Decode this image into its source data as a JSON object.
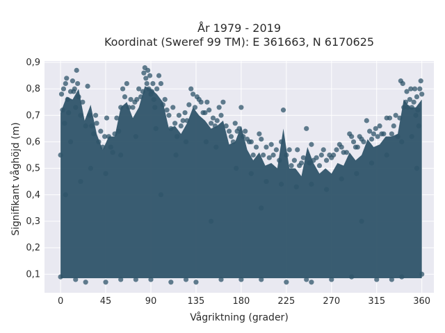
{
  "chart_data": {
    "type": "scatter",
    "title_line1": "År 1979 - 2019",
    "title_line2": "Koordinat (Sweref 99 TM): E 361663, N 6170625",
    "xlabel": "Vågriktning (grader)",
    "ylabel": "Signifikant våghöjd (m)",
    "xlim": [
      -16,
      372
    ],
    "ylim": [
      0.03,
      0.905
    ],
    "xticks": [
      0,
      45,
      90,
      135,
      180,
      225,
      270,
      315,
      360
    ],
    "xtick_labels": [
      "0",
      "45",
      "90",
      "135",
      "180",
      "225",
      "270",
      "315",
      "360"
    ],
    "yticks": [
      0.1,
      0.2,
      0.3,
      0.4,
      0.5,
      0.6,
      0.7,
      0.8,
      0.9
    ],
    "ytick_labels": [
      "0,1",
      "0,2",
      "0,3",
      "0,4",
      "0,5",
      "0,6",
      "0,7",
      "0,8",
      "0,9"
    ],
    "grid": true,
    "legend": "none",
    "marker_color": "#2f5469",
    "plot_background": "#e9e9f1",
    "grid_color": "#ffffff",
    "series": [
      {
        "points": [
          [
            0,
            0.09
          ],
          [
            0,
            0.55
          ],
          [
            1,
            0.78
          ],
          [
            2,
            0.72
          ],
          [
            3,
            0.8
          ],
          [
            4,
            0.67
          ],
          [
            5,
            0.82
          ],
          [
            6,
            0.84
          ],
          [
            7,
            0.76
          ],
          [
            8,
            0.71
          ],
          [
            10,
            0.79
          ],
          [
            12,
            0.83
          ],
          [
            13,
            0.79
          ],
          [
            14,
            0.8
          ],
          [
            15,
            0.73
          ],
          [
            16,
            0.87
          ],
          [
            17,
            0.82
          ],
          [
            18,
            0.77
          ],
          [
            20,
            0.7
          ],
          [
            22,
            0.75
          ],
          [
            25,
            0.66
          ],
          [
            27,
            0.81
          ],
          [
            29,
            0.7
          ],
          [
            31,
            0.66
          ],
          [
            33,
            0.63
          ],
          [
            35,
            0.7
          ],
          [
            36,
            0.67
          ],
          [
            38,
            0.6
          ],
          [
            40,
            0.64
          ],
          [
            42,
            0.58
          ],
          [
            44,
            0.62
          ],
          [
            46,
            0.69
          ],
          [
            48,
            0.62
          ],
          [
            50,
            0.58
          ],
          [
            52,
            0.56
          ],
          [
            54,
            0.63
          ],
          [
            56,
            0.69
          ],
          [
            58,
            0.64
          ],
          [
            60,
            0.73
          ],
          [
            62,
            0.8
          ],
          [
            64,
            0.77
          ],
          [
            66,
            0.82
          ],
          [
            68,
            0.73
          ],
          [
            70,
            0.76
          ],
          [
            72,
            0.73
          ],
          [
            74,
            0.75
          ],
          [
            76,
            0.76
          ],
          [
            78,
            0.8
          ],
          [
            80,
            0.77
          ],
          [
            82,
            0.79
          ],
          [
            83,
            0.86
          ],
          [
            84,
            0.88
          ],
          [
            85,
            0.84
          ],
          [
            86,
            0.82
          ],
          [
            87,
            0.87
          ],
          [
            88,
            0.8
          ],
          [
            89,
            0.85
          ],
          [
            90,
            0.78
          ],
          [
            91,
            0.79
          ],
          [
            92,
            0.82
          ],
          [
            93,
            0.76
          ],
          [
            94,
            0.73
          ],
          [
            96,
            0.8
          ],
          [
            98,
            0.85
          ],
          [
            100,
            0.82
          ],
          [
            102,
            0.74
          ],
          [
            104,
            0.76
          ],
          [
            106,
            0.72
          ],
          [
            108,
            0.7
          ],
          [
            110,
            0.65
          ],
          [
            112,
            0.73
          ],
          [
            114,
            0.67
          ],
          [
            116,
            0.62
          ],
          [
            118,
            0.7
          ],
          [
            120,
            0.66
          ],
          [
            122,
            0.68
          ],
          [
            124,
            0.71
          ],
          [
            126,
            0.68
          ],
          [
            128,
            0.74
          ],
          [
            130,
            0.8
          ],
          [
            132,
            0.78
          ],
          [
            134,
            0.73
          ],
          [
            136,
            0.77
          ],
          [
            138,
            0.76
          ],
          [
            140,
            0.75
          ],
          [
            142,
            0.71
          ],
          [
            144,
            0.71
          ],
          [
            146,
            0.75
          ],
          [
            148,
            0.72
          ],
          [
            150,
            0.67
          ],
          [
            152,
            0.69
          ],
          [
            154,
            0.66
          ],
          [
            156,
            0.68
          ],
          [
            158,
            0.73
          ],
          [
            160,
            0.7
          ],
          [
            162,
            0.75
          ],
          [
            165,
            0.66
          ],
          [
            168,
            0.64
          ],
          [
            170,
            0.62
          ],
          [
            172,
            0.6
          ],
          [
            174,
            0.67
          ],
          [
            176,
            0.64
          ],
          [
            178,
            0.65
          ],
          [
            180,
            0.73
          ],
          [
            182,
            0.62
          ],
          [
            184,
            0.64
          ],
          [
            186,
            0.61
          ],
          [
            188,
            0.6
          ],
          [
            190,
            0.6
          ],
          [
            192,
            0.55
          ],
          [
            195,
            0.58
          ],
          [
            198,
            0.63
          ],
          [
            200,
            0.61
          ],
          [
            202,
            0.55
          ],
          [
            205,
            0.58
          ],
          [
            208,
            0.54
          ],
          [
            210,
            0.59
          ],
          [
            212,
            0.55
          ],
          [
            215,
            0.57
          ],
          [
            218,
            0.53
          ],
          [
            220,
            0.6
          ],
          [
            222,
            0.72
          ],
          [
            225,
            0.55
          ],
          [
            228,
            0.57
          ],
          [
            230,
            0.51
          ],
          [
            233,
            0.53
          ],
          [
            236,
            0.57
          ],
          [
            238,
            0.51
          ],
          [
            240,
            0.52
          ],
          [
            242,
            0.54
          ],
          [
            245,
            0.65
          ],
          [
            248,
            0.52
          ],
          [
            250,
            0.59
          ],
          [
            252,
            0.53
          ],
          [
            255,
            0.54
          ],
          [
            258,
            0.51
          ],
          [
            260,
            0.55
          ],
          [
            262,
            0.57
          ],
          [
            265,
            0.53
          ],
          [
            268,
            0.55
          ],
          [
            270,
            0.54
          ],
          [
            272,
            0.55
          ],
          [
            275,
            0.57
          ],
          [
            278,
            0.59
          ],
          [
            280,
            0.58
          ],
          [
            282,
            0.56
          ],
          [
            285,
            0.56
          ],
          [
            288,
            0.63
          ],
          [
            290,
            0.62
          ],
          [
            292,
            0.6
          ],
          [
            294,
            0.58
          ],
          [
            296,
            0.58
          ],
          [
            298,
            0.62
          ],
          [
            300,
            0.61
          ],
          [
            302,
            0.6
          ],
          [
            305,
            0.68
          ],
          [
            308,
            0.64
          ],
          [
            310,
            0.61
          ],
          [
            312,
            0.63
          ],
          [
            314,
            0.65
          ],
          [
            316,
            0.62
          ],
          [
            318,
            0.66
          ],
          [
            320,
            0.63
          ],
          [
            322,
            0.63
          ],
          [
            325,
            0.69
          ],
          [
            328,
            0.69
          ],
          [
            330,
            0.63
          ],
          [
            332,
            0.66
          ],
          [
            334,
            0.7
          ],
          [
            336,
            0.62
          ],
          [
            338,
            0.69
          ],
          [
            339,
            0.83
          ],
          [
            341,
            0.82
          ],
          [
            342,
            0.73
          ],
          [
            344,
            0.75
          ],
          [
            345,
            0.79
          ],
          [
            346,
            0.73
          ],
          [
            348,
            0.76
          ],
          [
            349,
            0.8
          ],
          [
            350,
            0.73
          ],
          [
            352,
            0.75
          ],
          [
            353,
            0.8
          ],
          [
            354,
            0.7
          ],
          [
            355,
            0.77
          ],
          [
            356,
            0.72
          ],
          [
            357,
            0.66
          ],
          [
            358,
            0.8
          ],
          [
            359,
            0.83
          ],
          [
            360,
            0.78
          ],
          [
            360,
            0.1
          ],
          [
            30,
            0.5
          ],
          [
            45,
            0.48
          ],
          [
            60,
            0.55
          ],
          [
            75,
            0.62
          ],
          [
            95,
            0.65
          ],
          [
            115,
            0.55
          ],
          [
            125,
            0.6
          ],
          [
            145,
            0.6
          ],
          [
            155,
            0.58
          ],
          [
            175,
            0.5
          ],
          [
            190,
            0.48
          ],
          [
            205,
            0.45
          ],
          [
            220,
            0.44
          ],
          [
            235,
            0.43
          ],
          [
            250,
            0.44
          ],
          [
            265,
            0.42
          ],
          [
            280,
            0.46
          ],
          [
            295,
            0.48
          ],
          [
            310,
            0.52
          ],
          [
            325,
            0.55
          ],
          [
            340,
            0.6
          ],
          [
            350,
            0.62
          ],
          [
            20,
            0.45
          ],
          [
            10,
            0.6
          ],
          [
            5,
            0.4
          ],
          [
            355,
            0.5
          ],
          [
            100,
            0.4
          ],
          [
            200,
            0.35
          ],
          [
            300,
            0.3
          ],
          [
            150,
            0.3
          ],
          [
            15,
            0.08
          ],
          [
            45,
            0.07
          ],
          [
            90,
            0.08
          ],
          [
            135,
            0.07
          ],
          [
            180,
            0.08
          ],
          [
            225,
            0.07
          ],
          [
            270,
            0.08
          ],
          [
            315,
            0.08
          ],
          [
            340,
            0.09
          ],
          [
            60,
            0.08
          ],
          [
            110,
            0.07
          ],
          [
            160,
            0.08
          ],
          [
            200,
            0.08
          ],
          [
            250,
            0.07
          ],
          [
            290,
            0.09
          ],
          [
            330,
            0.08
          ],
          [
            25,
            0.07
          ],
          [
            75,
            0.08
          ],
          [
            125,
            0.08
          ],
          [
            245,
            0.08
          ]
        ]
      }
    ]
  }
}
